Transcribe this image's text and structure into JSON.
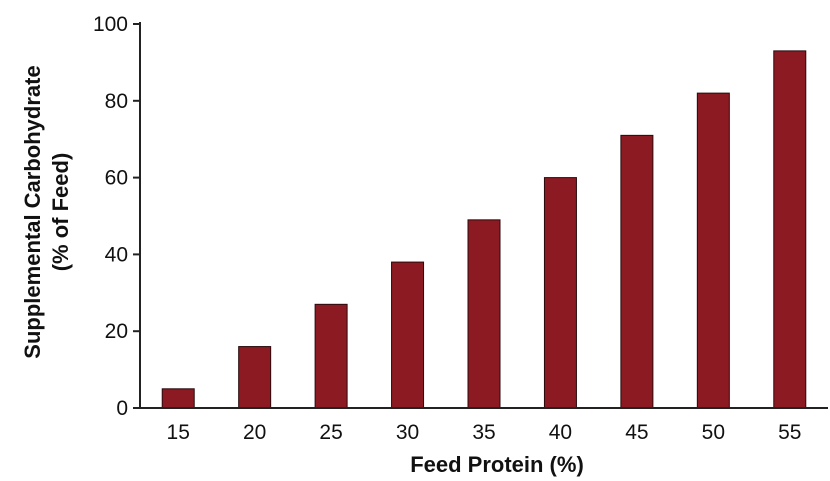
{
  "chart_data": {
    "type": "bar",
    "title": "",
    "xlabel": "Feed Protein (%)",
    "ylabel_line1": "Supplemental Carbohydrate",
    "ylabel_line2": "(% of Feed)",
    "categories": [
      "15",
      "20",
      "25",
      "30",
      "35",
      "40",
      "45",
      "50",
      "55"
    ],
    "values": [
      5,
      16,
      27,
      38,
      49,
      60,
      71,
      82,
      93
    ],
    "ylim": [
      0,
      100
    ],
    "yticks": [
      0,
      20,
      40,
      60,
      80,
      100
    ],
    "grid": false,
    "legend": false,
    "colors": {
      "bar": "#8b1a22",
      "axis": "#222222"
    }
  }
}
